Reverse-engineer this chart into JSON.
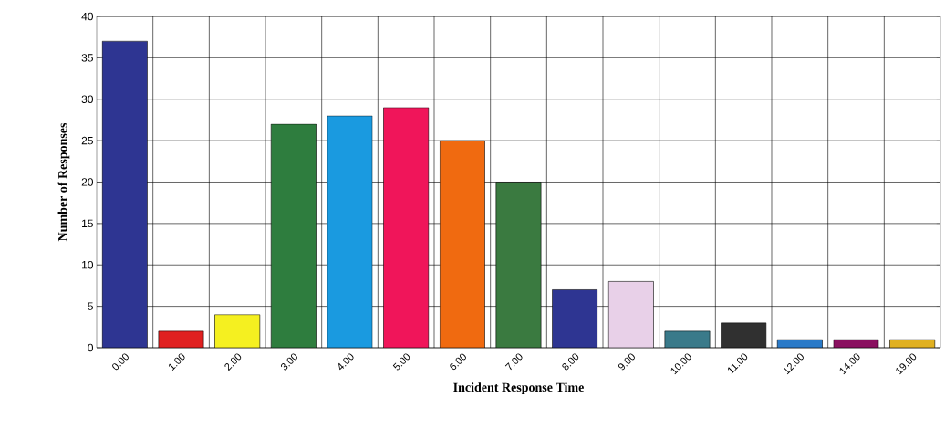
{
  "chart_data": {
    "type": "bar",
    "xlabel": "Incident Response Time",
    "ylabel": "Number of Responses",
    "categories": [
      "0.00",
      "1.00",
      "2.00",
      "3.00",
      "4.00",
      "5.00",
      "6.00",
      "7.00",
      "8.00",
      "9.00",
      "10.00",
      "11.00",
      "12.00",
      "14.00",
      "19.00"
    ],
    "values": [
      37,
      2,
      4,
      27,
      28,
      29,
      25,
      20,
      7,
      8,
      2,
      3,
      1,
      1,
      1
    ],
    "colors": [
      "#2e3592",
      "#e02020",
      "#f5f020",
      "#2e7d3e",
      "#1a9ae0",
      "#f0155a",
      "#f06a10",
      "#3a7a40",
      "#2e3592",
      "#e8d0e8",
      "#3a7a8a",
      "#303030",
      "#2a7ac8",
      "#8a1060",
      "#e0b020"
    ],
    "ylim": [
      0,
      40
    ],
    "yticks": [
      0,
      5,
      10,
      15,
      20,
      25,
      30,
      35,
      40
    ],
    "grid": true
  }
}
